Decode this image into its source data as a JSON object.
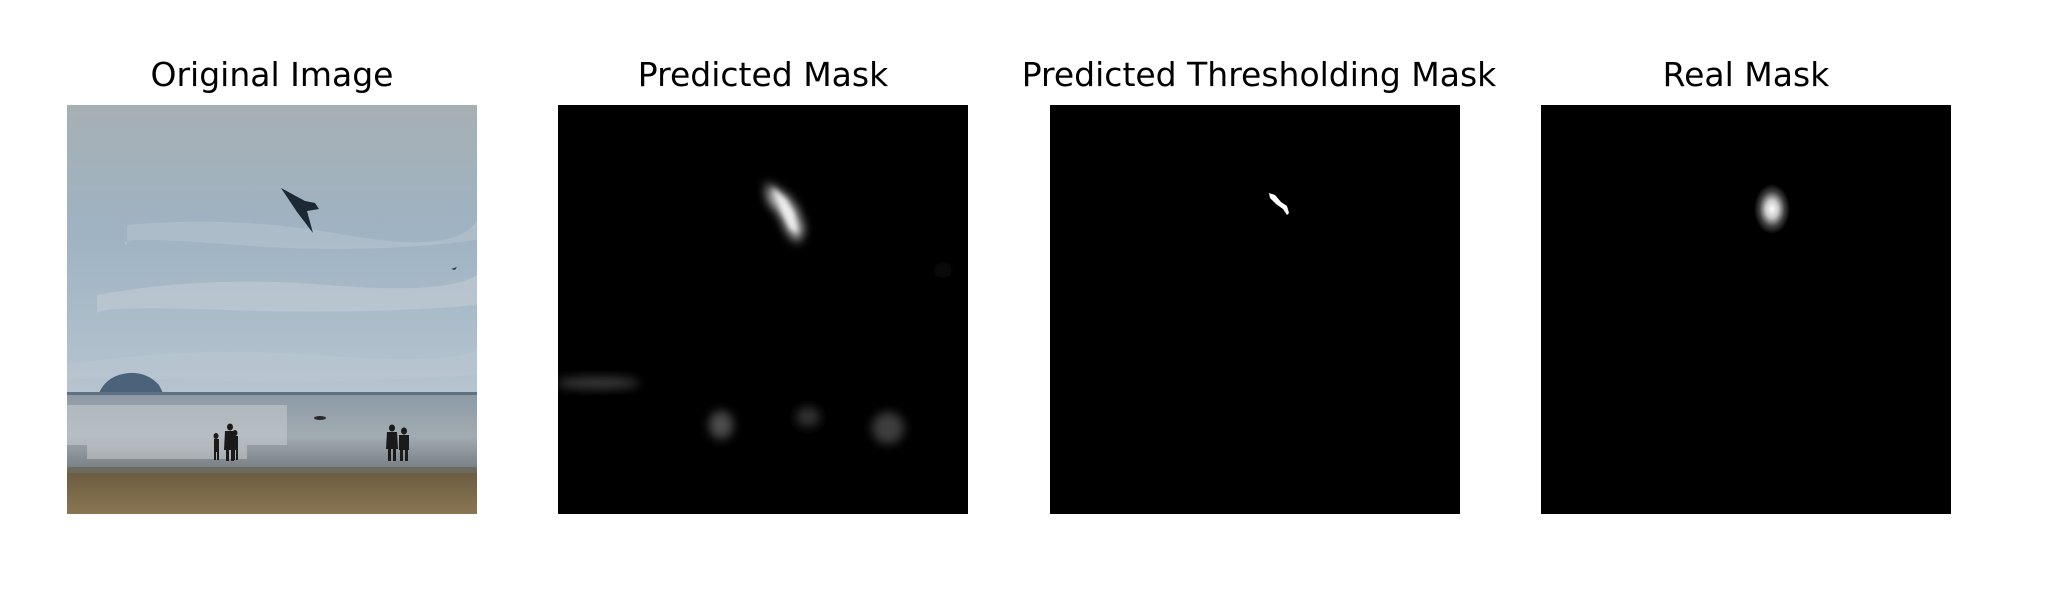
{
  "figure": {
    "panels": [
      {
        "title": "Original Image",
        "image": "beach-scene-with-aircraft-photo"
      },
      {
        "title": "Predicted Mask",
        "image": "grayscale-predicted-mask"
      },
      {
        "title": "Predicted Thresholding Mask",
        "image": "binary-threshold-mask"
      },
      {
        "title": "Real Mask",
        "image": "gaussian-ground-truth-mask"
      }
    ]
  },
  "colors": {
    "background": "#ffffff",
    "mask_background": "#000000",
    "mask_foreground": "#ffffff",
    "sky": "#a9b6bf",
    "sea": "#7a8a95",
    "sand": "#7d6b4a"
  }
}
